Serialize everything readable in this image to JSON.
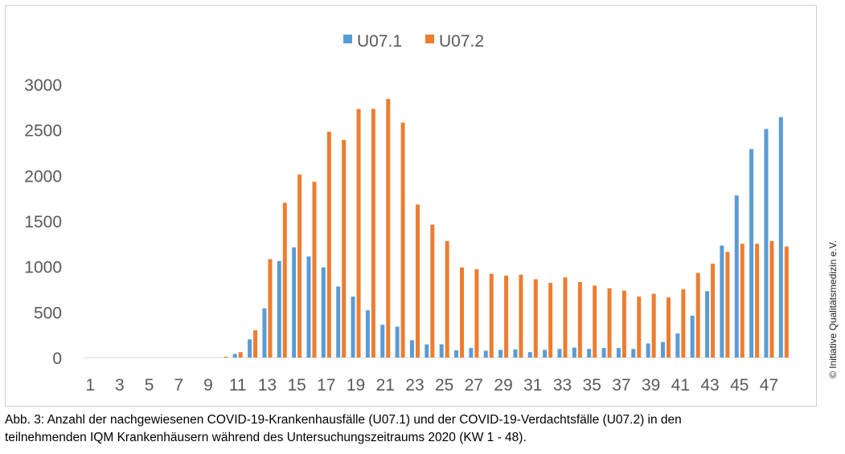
{
  "chart_data": {
    "type": "bar",
    "title": "",
    "xlabel": "",
    "ylabel": "",
    "ylim": [
      0,
      3000
    ],
    "yticks": [
      "0",
      "500",
      "1000",
      "1500",
      "2000",
      "2500",
      "3000"
    ],
    "ytick_values": [
      0,
      500,
      1000,
      1500,
      2000,
      2500,
      3000
    ],
    "categories": [
      1,
      2,
      3,
      4,
      5,
      6,
      7,
      8,
      9,
      10,
      11,
      12,
      13,
      14,
      15,
      16,
      17,
      18,
      19,
      20,
      21,
      22,
      23,
      24,
      25,
      26,
      27,
      28,
      29,
      30,
      31,
      32,
      33,
      34,
      35,
      36,
      37,
      38,
      39,
      40,
      41,
      42,
      43,
      44,
      45,
      46,
      47,
      48
    ],
    "xtick_labels_shown": [
      "1",
      "3",
      "5",
      "7",
      "9",
      "11",
      "13",
      "15",
      "17",
      "19",
      "21",
      "23",
      "25",
      "27",
      "29",
      "31",
      "33",
      "35",
      "37",
      "39",
      "41",
      "43",
      "45",
      "47"
    ],
    "grid": false,
    "legend_position": "top-center",
    "series": [
      {
        "name": "U07.1",
        "color": "#5B9BD5",
        "values": [
          0,
          0,
          0,
          0,
          0,
          0,
          0,
          0,
          0,
          0,
          40,
          200,
          540,
          1060,
          1210,
          1110,
          990,
          780,
          670,
          520,
          360,
          340,
          190,
          145,
          145,
          80,
          105,
          75,
          85,
          90,
          60,
          85,
          95,
          110,
          95,
          105,
          105,
          95,
          155,
          170,
          265,
          460,
          730,
          1230,
          1780,
          2290,
          2510,
          2640
        ]
      },
      {
        "name": "U07.2",
        "color": "#ED7D31",
        "values": [
          0,
          0,
          0,
          0,
          0,
          0,
          0,
          0,
          0,
          10,
          60,
          300,
          1080,
          1700,
          2010,
          1930,
          2480,
          2390,
          2730,
          2730,
          2840,
          2580,
          1680,
          1460,
          1280,
          990,
          970,
          920,
          900,
          910,
          860,
          820,
          880,
          830,
          790,
          760,
          735,
          670,
          700,
          660,
          750,
          930,
          1030,
          1160,
          1250,
          1250,
          1280,
          1220
        ]
      }
    ]
  },
  "caption": {
    "line1": "Abb. 3: Anzahl der nachgewiesenen COVID-19-Krankenhausfälle (U07.1) und der COVID-19-Verdachtsfälle (U07.2) in den",
    "line2": "teilnehmenden IQM Krankenhäusern während des Untersuchungszeitraums 2020 (KW 1 - 48)."
  },
  "copyright": "© Initiative Qualitätsmedizin e.V."
}
